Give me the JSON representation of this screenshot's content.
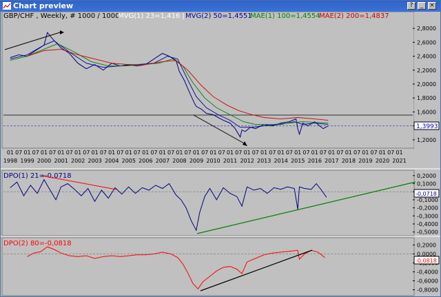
{
  "window": {
    "title": "Chart preview",
    "buttons": [
      {
        "name": "help-button",
        "glyph": "?"
      },
      {
        "name": "minimize-button",
        "glyph": "_"
      },
      {
        "name": "close-button",
        "glyph": "×"
      }
    ]
  },
  "header": {
    "symbol": "GBP/CHF , Weekly, # 1000 / 1000",
    "indicators": [
      {
        "text": "MVG(1) 23=1,416 |",
        "color": "#ffffff"
      },
      {
        "text": "MVG(2) 50=1,4551",
        "color": "#0000a0"
      },
      {
        "text": "MAE(1) 100=1,4554",
        "color": "#008000"
      },
      {
        "text": "MAE(2) 200=1,4837",
        "color": "#d00000"
      }
    ]
  },
  "colors": {
    "price": "#000080",
    "dpo1": "#000080",
    "dpo2": "#ff0000",
    "mvg2": "#0000a0",
    "mae1": "#008000",
    "mae2": "#d00000",
    "trend_red": "#ff0000",
    "trend_green": "#008000",
    "trend_black": "#000000"
  },
  "chart_data": [
    {
      "type": "line",
      "name": "price-panel",
      "y_ticks": [
        "2,8000",
        "2,6000",
        "2,4000",
        "2,2000",
        "2,0000",
        "1,8000",
        "1,6000",
        "1,4000",
        "1,2000"
      ],
      "ylim": [
        1.1,
        2.9
      ],
      "last_value_label": "1,3993",
      "last_value": 1.3993,
      "x_year_labels": [
        "1998",
        "1999",
        "2000",
        "2001",
        "2002",
        "2003",
        "2004",
        "2005",
        "2006",
        "2007",
        "2008",
        "2009",
        "2010",
        "2011",
        "2012",
        "2013",
        "2014",
        "2015",
        "2016",
        "2017",
        "2018",
        "2019",
        "2020",
        "2021"
      ],
      "x_month_labels": [
        "07",
        "01"
      ],
      "series": [
        {
          "name": "GBP/CHF",
          "color": "#000080",
          "x": [
            1998.0,
            1998.5,
            1999.0,
            1999.5,
            2000.0,
            2000.2,
            2000.5,
            2001.0,
            2001.5,
            2002.0,
            2002.5,
            2003.0,
            2003.5,
            2004.0,
            2004.5,
            2005.0,
            2005.5,
            2006.0,
            2006.5,
            2007.0,
            2007.4,
            2007.8,
            2008.0,
            2008.3,
            2008.6,
            2008.9,
            2009.0,
            2009.3,
            2009.6,
            2010.0,
            2010.3,
            2010.6,
            2011.0,
            2011.3,
            2011.6,
            2011.7,
            2011.9,
            2012.2,
            2012.5,
            2013.0,
            2013.5,
            2014.0,
            2014.5,
            2014.9,
            2015.0,
            2015.1,
            2015.3,
            2015.6,
            2016.0,
            2016.3,
            2016.5,
            2016.8
          ],
          "y": [
            2.38,
            2.42,
            2.4,
            2.48,
            2.56,
            2.74,
            2.65,
            2.52,
            2.44,
            2.3,
            2.22,
            2.28,
            2.2,
            2.3,
            2.26,
            2.28,
            2.26,
            2.28,
            2.36,
            2.44,
            2.4,
            2.34,
            2.18,
            2.05,
            1.88,
            1.72,
            1.68,
            1.64,
            1.58,
            1.56,
            1.52,
            1.48,
            1.44,
            1.36,
            1.24,
            1.34,
            1.32,
            1.38,
            1.36,
            1.42,
            1.4,
            1.44,
            1.46,
            1.5,
            1.36,
            1.28,
            1.44,
            1.4,
            1.46,
            1.4,
            1.36,
            1.4
          ]
        },
        {
          "name": "MVG(2) 50",
          "color": "#0000a0",
          "x": [
            1998.0,
            1999.0,
            2000.0,
            2000.6,
            2001.5,
            2002.5,
            2003.5,
            2004.5,
            2005.5,
            2006.5,
            2007.3,
            2007.9,
            2008.5,
            2009.0,
            2009.6,
            2010.3,
            2011.0,
            2011.6,
            2012.3,
            2013.0,
            2014.0,
            2014.8,
            2015.3,
            2016.0,
            2016.8
          ],
          "y": [
            2.36,
            2.42,
            2.56,
            2.62,
            2.46,
            2.3,
            2.24,
            2.26,
            2.28,
            2.3,
            2.4,
            2.36,
            2.06,
            1.82,
            1.66,
            1.56,
            1.48,
            1.38,
            1.38,
            1.4,
            1.42,
            1.46,
            1.42,
            1.44,
            1.42
          ]
        },
        {
          "name": "MAE(1) 100",
          "color": "#008000",
          "x": [
            1998.0,
            1999.0,
            2000.0,
            2000.8,
            2001.8,
            2002.8,
            2003.8,
            2004.8,
            2005.8,
            2006.8,
            2007.6,
            2008.2,
            2008.8,
            2009.5,
            2010.2,
            2011.0,
            2011.8,
            2012.5,
            2013.5,
            2014.5,
            2015.3,
            2016.0,
            2016.8
          ],
          "y": [
            2.34,
            2.4,
            2.5,
            2.58,
            2.46,
            2.32,
            2.26,
            2.26,
            2.28,
            2.3,
            2.36,
            2.26,
            2.02,
            1.8,
            1.66,
            1.56,
            1.46,
            1.42,
            1.42,
            1.44,
            1.46,
            1.45,
            1.44
          ]
        },
        {
          "name": "MAE(2) 200",
          "color": "#d00000",
          "x": [
            1999.0,
            2000.0,
            2001.0,
            2002.0,
            2003.0,
            2004.0,
            2005.0,
            2006.0,
            2007.0,
            2007.8,
            2008.5,
            2009.3,
            2010.0,
            2010.8,
            2011.5,
            2012.3,
            2013.0,
            2014.0,
            2015.0,
            2016.0,
            2016.8
          ],
          "y": [
            2.4,
            2.48,
            2.5,
            2.42,
            2.36,
            2.3,
            2.28,
            2.28,
            2.32,
            2.34,
            2.2,
            1.98,
            1.82,
            1.7,
            1.62,
            1.56,
            1.52,
            1.5,
            1.52,
            1.5,
            1.48
          ]
        }
      ],
      "hlines": [
        {
          "y": 1.555,
          "style": "solid",
          "color": "#000000"
        },
        {
          "y": 1.3993,
          "style": "dashed",
          "color": "#4040c0"
        }
      ]
    },
    {
      "type": "line",
      "name": "dpo1-panel",
      "title": "DPO(1) 21=-0,0718",
      "y_ticks": [
        "0,2000",
        "0,1000",
        "0,0000",
        "-0,1000",
        "-0,2000",
        "-0,3000",
        "-0,4000",
        "-0,5000"
      ],
      "ylim": [
        -0.52,
        0.25
      ],
      "last_value_label": "-0,0718",
      "last_value": -0.0718,
      "series": [
        {
          "name": "DPO(1) 21",
          "color": "#000080",
          "x": [
            1998.0,
            1998.4,
            1998.8,
            1999.2,
            1999.6,
            2000.0,
            2000.3,
            2000.7,
            2001.0,
            2001.4,
            2001.8,
            2002.2,
            2002.6,
            2003.0,
            2003.4,
            2003.8,
            2004.2,
            2004.6,
            2005.0,
            2005.4,
            2005.8,
            2006.2,
            2006.6,
            2007.0,
            2007.4,
            2007.8,
            2008.1,
            2008.4,
            2008.7,
            2009.0,
            2009.2,
            2009.5,
            2009.8,
            2010.2,
            2010.6,
            2011.0,
            2011.4,
            2011.7,
            2012.0,
            2012.4,
            2012.8,
            2013.2,
            2013.6,
            2014.0,
            2014.4,
            2014.8,
            2015.0,
            2015.1,
            2015.4,
            2015.8,
            2016.1,
            2016.4,
            2016.7
          ],
          "y": [
            0.05,
            0.12,
            -0.05,
            0.08,
            -0.02,
            0.15,
            0.04,
            -0.1,
            0.06,
            0.1,
            0.03,
            -0.05,
            0.04,
            -0.12,
            0.02,
            -0.08,
            0.05,
            -0.03,
            0.06,
            -0.02,
            0.05,
            0.02,
            0.08,
            0.04,
            0.1,
            -0.04,
            -0.1,
            -0.2,
            -0.36,
            -0.48,
            -0.26,
            -0.06,
            0.04,
            -0.1,
            0.05,
            -0.02,
            -0.06,
            -0.18,
            0.06,
            0.02,
            0.04,
            -0.02,
            0.05,
            0.03,
            0.06,
            0.04,
            -0.22,
            0.06,
            0.04,
            0.03,
            0.1,
            0.02,
            -0.07
          ]
        }
      ],
      "hlines": [
        {
          "y": 0.0,
          "style": "dashed",
          "color": "#808080"
        }
      ]
    },
    {
      "type": "line",
      "name": "dpo2-panel",
      "title": "DPO(2) 80=-0,0818",
      "y_ticks": [
        "0,2000",
        "0,0000",
        "-0,2000",
        "-0,4000",
        "-0,6000",
        "-0,8000"
      ],
      "ylim": [
        -0.9,
        0.3
      ],
      "last_value_label": "-0,0818",
      "last_value": -0.0818,
      "series": [
        {
          "name": "DPO(2) 80",
          "color": "#ff0000",
          "x": [
            1999.0,
            1999.4,
            1999.8,
            2000.2,
            2000.6,
            2001.0,
            2001.5,
            2002.0,
            2002.5,
            2003.0,
            2003.5,
            2004.0,
            2004.5,
            2005.0,
            2005.5,
            2006.0,
            2006.5,
            2007.0,
            2007.5,
            2007.9,
            2008.2,
            2008.5,
            2008.8,
            2009.1,
            2009.4,
            2009.8,
            2010.2,
            2010.6,
            2011.0,
            2011.4,
            2011.7,
            2012.0,
            2012.5,
            2013.0,
            2013.5,
            2014.0,
            2014.5,
            2015.0,
            2015.1,
            2015.4,
            2015.8,
            2016.2,
            2016.6
          ],
          "y": [
            -0.06,
            0.02,
            0.05,
            0.16,
            0.1,
            0.02,
            -0.04,
            -0.06,
            -0.04,
            -0.1,
            -0.06,
            -0.04,
            -0.06,
            -0.04,
            -0.02,
            -0.02,
            0.0,
            0.04,
            0.0,
            -0.08,
            -0.22,
            -0.42,
            -0.66,
            -0.78,
            -0.62,
            -0.5,
            -0.38,
            -0.3,
            -0.28,
            -0.34,
            -0.44,
            -0.18,
            -0.1,
            -0.02,
            0.02,
            0.04,
            0.06,
            0.08,
            -0.12,
            0.0,
            0.08,
            0.04,
            -0.08
          ]
        }
      ],
      "hlines": [
        {
          "y": 0.0,
          "style": "dashed",
          "color": "#808080"
        }
      ]
    }
  ]
}
